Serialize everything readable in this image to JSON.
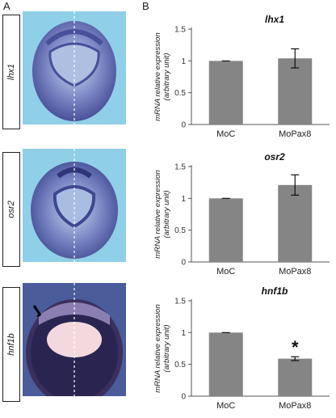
{
  "panel_labels": {
    "a": "A",
    "b": "B"
  },
  "gene_labels": [
    "lhx1",
    "osr2",
    "hnf1b"
  ],
  "colors": {
    "bar": "#858585",
    "photo_bg": "#8fcfe8",
    "embryo": "#4a4f9a",
    "embryo_dark": "#2a2550",
    "pink": "#f3d9de"
  },
  "chart_data": [
    {
      "type": "bar",
      "title": "lhx1",
      "categories": [
        "MoC",
        "MoPax8"
      ],
      "values": [
        1.0,
        1.04
      ],
      "errors": [
        0.0,
        0.15
      ],
      "ylabel": [
        "mRNA relative expression",
        "(arbitrary unit)"
      ],
      "ylim": [
        0,
        1.5
      ],
      "yticks": [
        "0",
        "0.5",
        "1",
        "1.5"
      ],
      "annotations": [
        "",
        ""
      ]
    },
    {
      "type": "bar",
      "title": "osr2",
      "categories": [
        "MoC",
        "MoPax8"
      ],
      "values": [
        1.0,
        1.21
      ],
      "errors": [
        0.0,
        0.16
      ],
      "ylabel": [
        "mRNA relative expression",
        "(arbitrary unit)"
      ],
      "ylim": [
        0,
        1.5
      ],
      "yticks": [
        "0",
        "0.5",
        "1",
        "1.5"
      ],
      "annotations": [
        "",
        ""
      ]
    },
    {
      "type": "bar",
      "title": "hnf1b",
      "categories": [
        "MoC",
        "MoPax8"
      ],
      "values": [
        1.0,
        0.59
      ],
      "errors": [
        0.0,
        0.03
      ],
      "ylabel": [
        "mRNA relative expression",
        "(arbitrary unit)"
      ],
      "ylim": [
        0,
        1.5
      ],
      "yticks": [
        "0",
        "0.5",
        "1",
        "1.5"
      ],
      "annotations": [
        "",
        "*"
      ]
    }
  ]
}
